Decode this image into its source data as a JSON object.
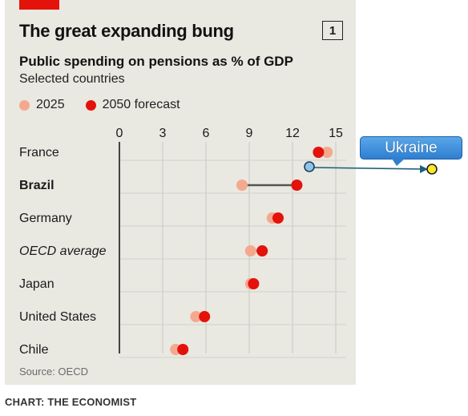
{
  "header": {
    "title": "The great expanding bung",
    "badge": "1",
    "subtitle": "Public spending on pensions as % of GDP",
    "subtitle2": "Selected countries"
  },
  "legend": [
    {
      "label": "2025",
      "color": "#f4a98f"
    },
    {
      "label": "2050 forecast",
      "color": "#e3120b"
    }
  ],
  "source": "Source: OECD",
  "credit": "CHART: THE ECONOMIST",
  "annotation": {
    "label": "Ukraine"
  },
  "chart_data": {
    "type": "dot",
    "title": "The great expanding bung",
    "subtitle": "Public spending on pensions as % of GDP",
    "x_ticks": [
      0,
      3,
      6,
      9,
      12,
      15
    ],
    "xlim": [
      0,
      15
    ],
    "grid": true,
    "legend_position": "top-left",
    "series": [
      {
        "name": "2025",
        "color": "#f4a98f"
      },
      {
        "name": "2050 forecast",
        "color": "#e3120b"
      }
    ],
    "rows": [
      {
        "label": "France",
        "style": "normal",
        "v2025": 14.4,
        "v2050": 13.8
      },
      {
        "label": "Brazil",
        "style": "bold",
        "v2025": 8.5,
        "v2050": 12.3,
        "connector": true
      },
      {
        "label": "Germany",
        "style": "normal",
        "v2025": 10.6,
        "v2050": 11.0
      },
      {
        "label": "OECD average",
        "style": "italic",
        "v2025": 9.1,
        "v2050": 9.9
      },
      {
        "label": "Japan",
        "style": "normal",
        "v2025": 9.1,
        "v2050": 9.3
      },
      {
        "label": "United States",
        "style": "normal",
        "v2025": 5.3,
        "v2050": 5.9
      },
      {
        "label": "Chile",
        "style": "normal",
        "v2025": 3.9,
        "v2050": 4.4
      }
    ]
  }
}
